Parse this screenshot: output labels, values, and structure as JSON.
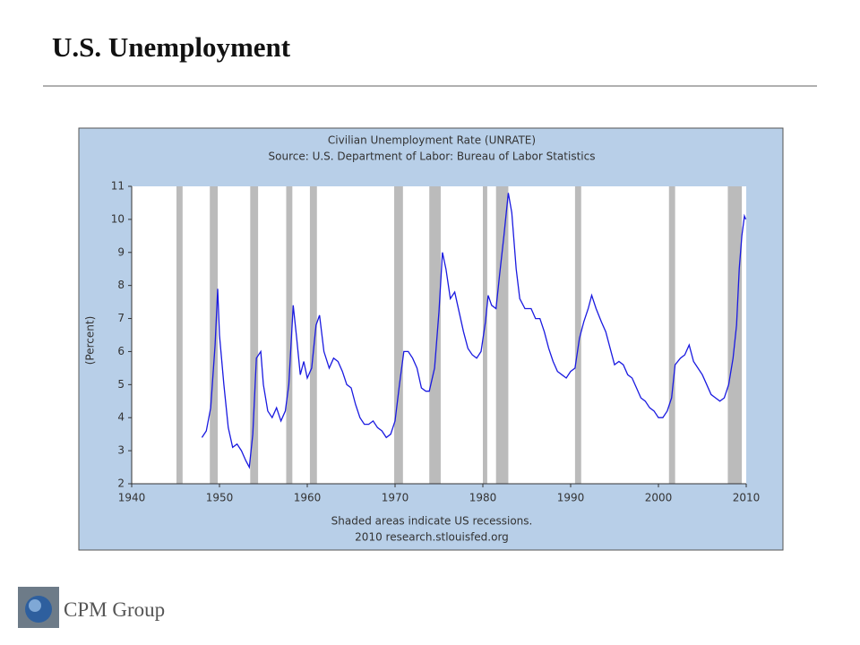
{
  "header": {
    "title": "U.S. Unemployment"
  },
  "footer": {
    "logo_text": "CPM Group"
  },
  "chart_data": {
    "type": "line",
    "title": "Civilian Unemployment Rate (UNRATE)",
    "subtitle": "Source: U.S. Department of Labor: Bureau of Labor Statistics",
    "y_label": "(Percent)",
    "notes": [
      "Shaded areas indicate US recessions.",
      "2010 research.stlouisfed.org"
    ],
    "xlim": [
      1940,
      2010
    ],
    "xticks": [
      1940,
      1950,
      1960,
      1970,
      1980,
      1990,
      2000,
      2010
    ],
    "ylim": [
      2,
      11
    ],
    "yticks": [
      2,
      3,
      4,
      5,
      6,
      7,
      8,
      9,
      10,
      11
    ],
    "recession_color": "#bbbbbb",
    "recessions": [
      [
        1945.1,
        1945.8
      ],
      [
        1948.9,
        1949.8
      ],
      [
        1953.5,
        1954.4
      ],
      [
        1957.6,
        1958.3
      ],
      [
        1960.3,
        1961.1
      ],
      [
        1969.9,
        1970.9
      ],
      [
        1973.9,
        1975.2
      ],
      [
        1980.0,
        1980.5
      ],
      [
        1981.5,
        1982.9
      ],
      [
        1990.5,
        1991.2
      ],
      [
        2001.2,
        2001.9
      ],
      [
        2007.9,
        2009.5
      ]
    ],
    "x": [
      1948.0,
      1948.5,
      1949.0,
      1949.5,
      1949.8,
      1950.0,
      1950.5,
      1951.0,
      1951.5,
      1952.0,
      1952.5,
      1953.0,
      1953.4,
      1953.8,
      1954.2,
      1954.7,
      1955.0,
      1955.5,
      1956.0,
      1956.5,
      1957.0,
      1957.5,
      1957.9,
      1958.4,
      1958.8,
      1959.2,
      1959.6,
      1960.0,
      1960.5,
      1961.0,
      1961.4,
      1961.9,
      1962.5,
      1963.0,
      1963.5,
      1964.0,
      1964.5,
      1965.0,
      1965.5,
      1966.0,
      1966.5,
      1967.0,
      1967.5,
      1968.0,
      1968.5,
      1969.0,
      1969.5,
      1970.0,
      1970.5,
      1971.0,
      1971.5,
      1972.0,
      1972.5,
      1973.0,
      1973.5,
      1973.9,
      1974.5,
      1975.0,
      1975.4,
      1975.8,
      1976.3,
      1976.8,
      1977.3,
      1977.8,
      1978.3,
      1978.8,
      1979.3,
      1979.8,
      1980.3,
      1980.6,
      1981.0,
      1981.5,
      1981.9,
      1982.4,
      1982.9,
      1983.3,
      1983.8,
      1984.2,
      1984.8,
      1985.5,
      1986.0,
      1986.5,
      1987.0,
      1987.5,
      1988.0,
      1988.5,
      1989.0,
      1989.5,
      1990.0,
      1990.5,
      1991.0,
      1991.5,
      1992.0,
      1992.4,
      1992.9,
      1993.5,
      1994.0,
      1994.5,
      1995.0,
      1995.5,
      1996.0,
      1996.5,
      1997.0,
      1997.5,
      1998.0,
      1998.5,
      1999.0,
      1999.5,
      2000.0,
      2000.5,
      2001.0,
      2001.5,
      2001.9,
      2002.5,
      2003.0,
      2003.5,
      2004.0,
      2004.5,
      2005.0,
      2005.5,
      2006.0,
      2006.5,
      2007.0,
      2007.5,
      2008.0,
      2008.5,
      2008.9,
      2009.2,
      2009.5,
      2009.8,
      2009.95
    ],
    "series": [
      {
        "name": "UNRATE",
        "color": "#1a1ae0",
        "values": [
          3.4,
          3.6,
          4.3,
          6.2,
          7.9,
          6.5,
          5.0,
          3.7,
          3.1,
          3.2,
          3.0,
          2.7,
          2.5,
          3.5,
          5.8,
          6.0,
          5.0,
          4.2,
          4.0,
          4.3,
          3.9,
          4.2,
          5.0,
          7.4,
          6.4,
          5.3,
          5.7,
          5.2,
          5.5,
          6.8,
          7.1,
          6.0,
          5.5,
          5.8,
          5.7,
          5.4,
          5.0,
          4.9,
          4.4,
          4.0,
          3.8,
          3.8,
          3.9,
          3.7,
          3.6,
          3.4,
          3.5,
          3.9,
          5.0,
          6.0,
          6.0,
          5.8,
          5.5,
          4.9,
          4.8,
          4.8,
          5.5,
          7.2,
          9.0,
          8.5,
          7.6,
          7.8,
          7.2,
          6.6,
          6.1,
          5.9,
          5.8,
          6.0,
          6.9,
          7.7,
          7.4,
          7.3,
          8.3,
          9.5,
          10.8,
          10.2,
          8.5,
          7.6,
          7.3,
          7.3,
          7.0,
          7.0,
          6.6,
          6.1,
          5.7,
          5.4,
          5.3,
          5.2,
          5.4,
          5.5,
          6.4,
          6.9,
          7.3,
          7.7,
          7.3,
          6.9,
          6.6,
          6.1,
          5.6,
          5.7,
          5.6,
          5.3,
          5.2,
          4.9,
          4.6,
          4.5,
          4.3,
          4.2,
          4.0,
          4.0,
          4.2,
          4.6,
          5.6,
          5.8,
          5.9,
          6.2,
          5.7,
          5.5,
          5.3,
          5.0,
          4.7,
          4.6,
          4.5,
          4.6,
          5.0,
          5.8,
          6.8,
          8.5,
          9.5,
          10.1,
          10.0
        ]
      }
    ]
  }
}
